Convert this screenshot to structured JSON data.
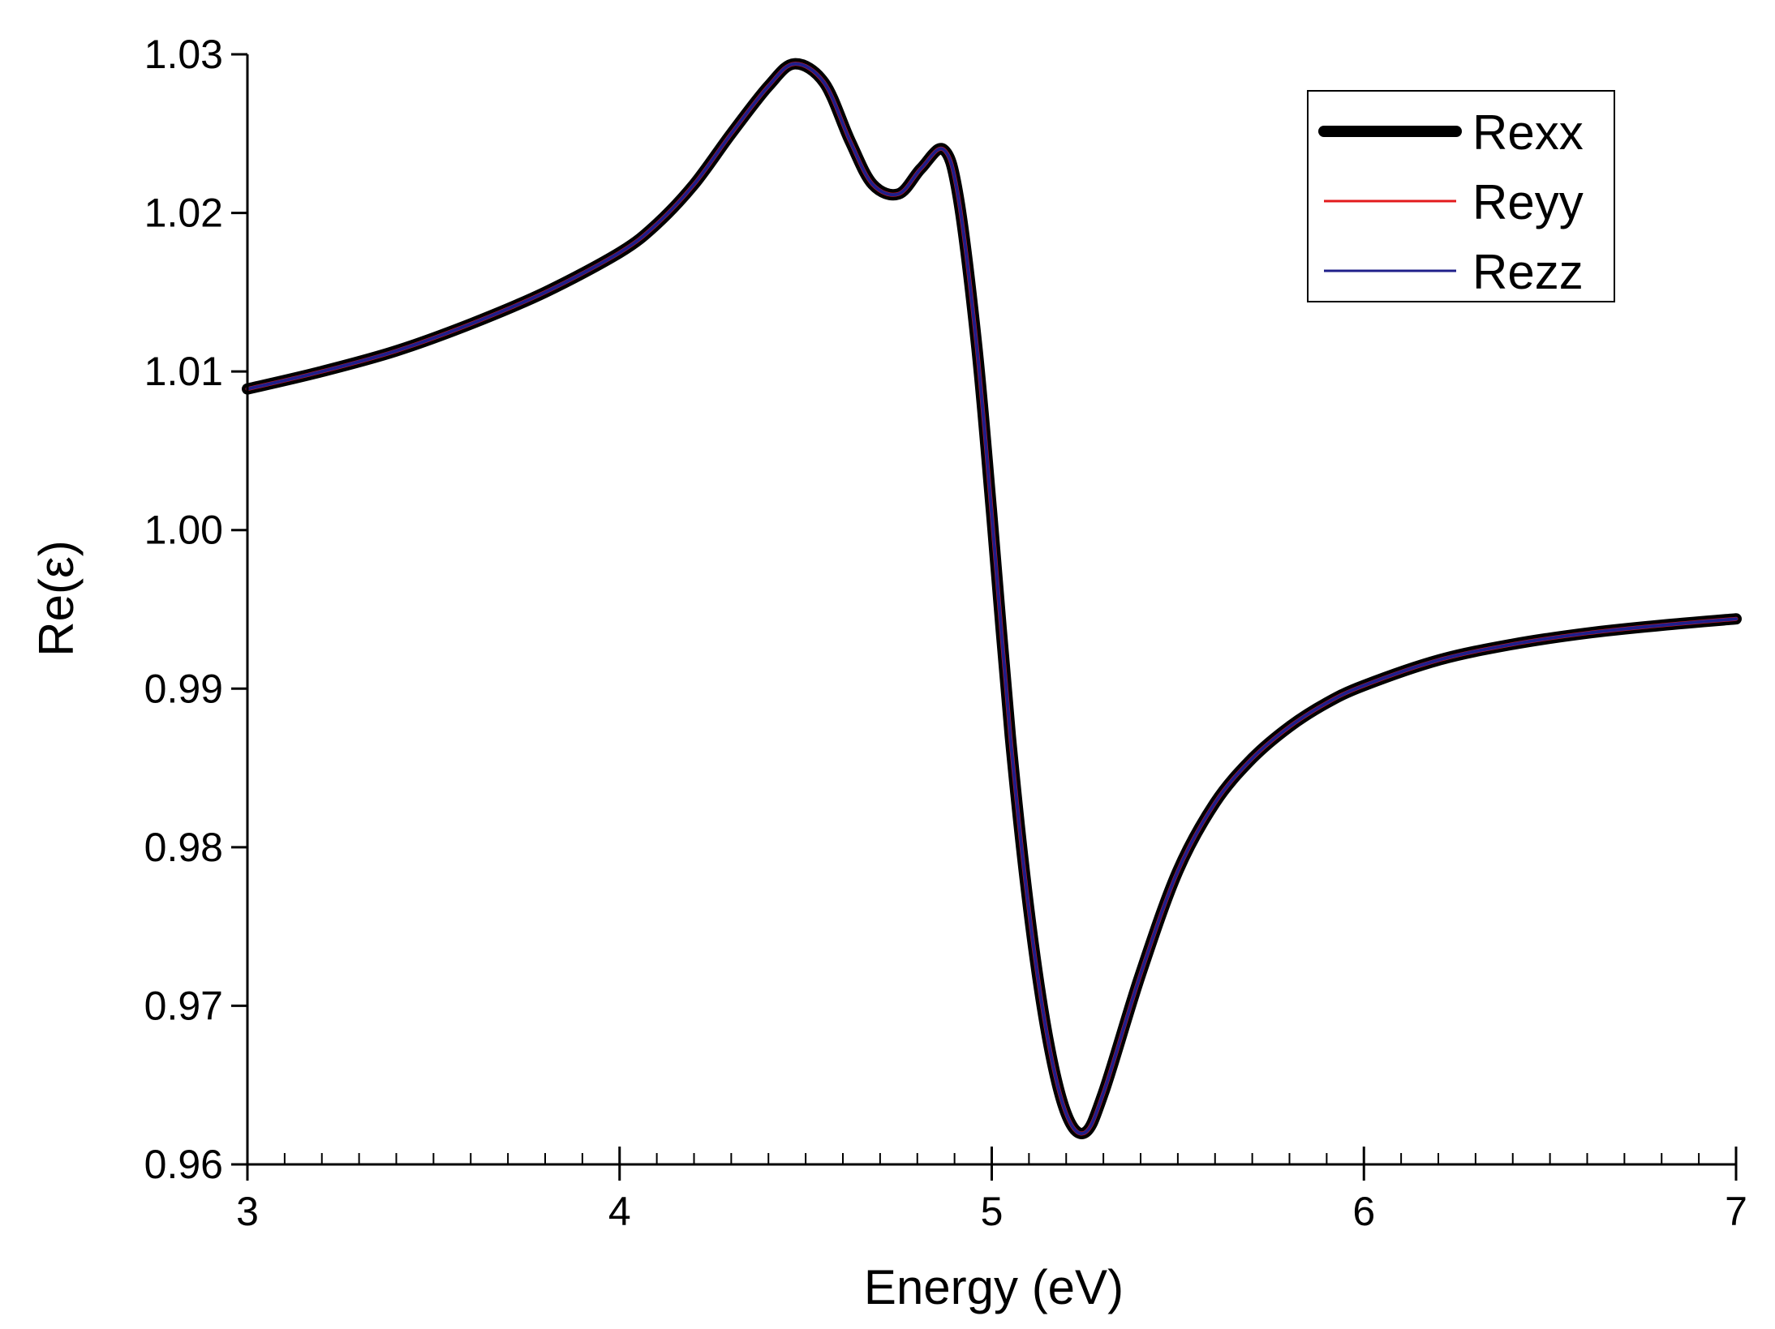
{
  "chart_data": {
    "type": "line",
    "title": "",
    "xlabel": "Energy (eV)",
    "ylabel": "Re(ε)",
    "xlim": [
      3,
      7
    ],
    "ylim": [
      0.96,
      1.03
    ],
    "x_ticks": [
      3,
      4,
      5,
      6,
      7
    ],
    "x_tick_labels": [
      "3",
      "4",
      "5",
      "6",
      "7"
    ],
    "x_minor_step": 0.1,
    "y_ticks": [
      0.96,
      0.97,
      0.98,
      0.99,
      1.0,
      1.01,
      1.02,
      1.03
    ],
    "y_tick_labels": [
      "0.96",
      "0.97",
      "0.98",
      "0.99",
      "1.00",
      "1.01",
      "1.02",
      "1.03"
    ],
    "grid": false,
    "legend_position": "top-right",
    "x": [
      3.0,
      3.2,
      3.4,
      3.6,
      3.8,
      4.0,
      4.1,
      4.2,
      4.3,
      4.4,
      4.47,
      4.55,
      4.62,
      4.68,
      4.75,
      4.81,
      4.87,
      4.91,
      4.96,
      5.0,
      5.05,
      5.1,
      5.15,
      5.2,
      5.25,
      5.3,
      5.4,
      5.5,
      5.6,
      5.7,
      5.8,
      5.9,
      6.0,
      6.2,
      6.4,
      6.6,
      6.8,
      7.0
    ],
    "series": [
      {
        "name": "Rexx",
        "color": "#000000",
        "values": [
          1.0089,
          1.01,
          1.0113,
          1.013,
          1.015,
          1.0175,
          1.0193,
          1.0218,
          1.025,
          1.028,
          1.0294,
          1.0282,
          1.0245,
          1.0218,
          1.0212,
          1.0228,
          1.024,
          1.021,
          1.0115,
          1.001,
          0.987,
          0.976,
          0.968,
          0.9632,
          0.962,
          0.9645,
          0.972,
          0.9785,
          0.9828,
          0.9856,
          0.9876,
          0.9891,
          0.9902,
          0.9918,
          0.9928,
          0.9935,
          0.994,
          0.9944
        ]
      },
      {
        "name": "Reyy",
        "color": "#e31a1c",
        "values": [
          1.0089,
          1.01,
          1.0113,
          1.013,
          1.015,
          1.0175,
          1.0193,
          1.0218,
          1.025,
          1.028,
          1.0294,
          1.0282,
          1.0245,
          1.0218,
          1.0212,
          1.0228,
          1.024,
          1.021,
          1.0115,
          1.001,
          0.987,
          0.976,
          0.968,
          0.9632,
          0.962,
          0.9645,
          0.972,
          0.9785,
          0.9828,
          0.9856,
          0.9876,
          0.9891,
          0.9902,
          0.9918,
          0.9928,
          0.9935,
          0.994,
          0.9944
        ]
      },
      {
        "name": "Rezz",
        "color": "#1f1f8a",
        "values": [
          1.0089,
          1.01,
          1.0113,
          1.013,
          1.015,
          1.0175,
          1.0193,
          1.0218,
          1.025,
          1.028,
          1.0294,
          1.0282,
          1.0245,
          1.0218,
          1.0212,
          1.0228,
          1.024,
          1.021,
          1.0115,
          1.001,
          0.987,
          0.976,
          0.968,
          0.9632,
          0.962,
          0.9645,
          0.972,
          0.9785,
          0.9828,
          0.9856,
          0.9876,
          0.9891,
          0.9902,
          0.9918,
          0.9928,
          0.9935,
          0.994,
          0.9944
        ]
      }
    ]
  }
}
